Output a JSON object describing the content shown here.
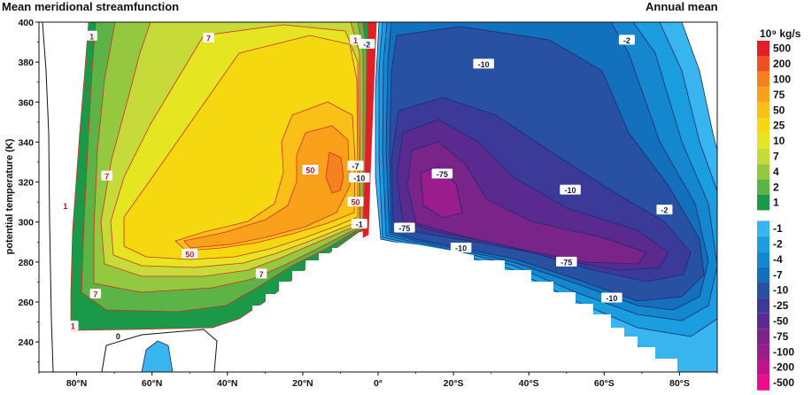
{
  "title_left": "Mean meridional streamfunction",
  "title_right": "Annual mean",
  "chart_data": {
    "type": "contour",
    "title": "Mean meridional streamfunction",
    "subtitle": "Annual mean",
    "xlabel": "",
    "ylabel": "potential temperature (K)",
    "xlim": [
      90,
      -90
    ],
    "ylim": [
      225,
      400
    ],
    "x_ticks": [
      80,
      60,
      40,
      20,
      0,
      -20,
      -40,
      -60,
      -80
    ],
    "x_tick_labels": [
      "80°N",
      "60°N",
      "40°N",
      "20°N",
      "0°",
      "20°S",
      "40°S",
      "60°S",
      "80°S"
    ],
    "y_ticks": [
      240,
      260,
      280,
      300,
      320,
      340,
      360,
      380,
      400
    ],
    "y_tick_labels": [
      "240",
      "260",
      "280",
      "300",
      "320",
      "340",
      "360",
      "380",
      "400"
    ],
    "units": "10⁹ kg/s",
    "colorbar_levels": [
      "500",
      "200",
      "100",
      "75",
      "50",
      "25",
      "10",
      "7",
      "4",
      "2",
      "1",
      "-1",
      "-2",
      "-4",
      "-7",
      "-10",
      "-25",
      "-50",
      "-75",
      "-100",
      "-200",
      "-500"
    ],
    "colorbar_colors": [
      "#e41e26",
      "#f04e23",
      "#f5821f",
      "#f9a11b",
      "#fbc017",
      "#f5d80f",
      "#e5e621",
      "#c6db3a",
      "#94c83e",
      "#5db446",
      "#1a9a48",
      "#38b4ee",
      "#1a9ee0",
      "#1587ce",
      "#1270bd",
      "#2951a3",
      "#3c3a98",
      "#5a2a91",
      "#7a2489",
      "#9a1d8b",
      "#c0148e",
      "#e90e8b"
    ],
    "contour_labels": [
      {
        "value": "1",
        "lat": 76,
        "theta": 393
      },
      {
        "value": "7",
        "lat": 45,
        "theta": 392
      },
      {
        "value": "1",
        "lat": 6,
        "theta": 391
      },
      {
        "value": "-2",
        "lat": 3,
        "theta": 389
      },
      {
        "value": "-10",
        "lat": -28,
        "theta": 379
      },
      {
        "value": "-2",
        "lat": -66,
        "theta": 391
      },
      {
        "value": "7",
        "lat": 72,
        "theta": 323
      },
      {
        "value": "50",
        "lat": 18,
        "theta": 326
      },
      {
        "value": "-7",
        "lat": 6,
        "theta": 328
      },
      {
        "value": "-10",
        "lat": 5,
        "theta": 322
      },
      {
        "value": "-75",
        "lat": -17,
        "theta": 324
      },
      {
        "value": "-10",
        "lat": -51,
        "theta": 316
      },
      {
        "value": "-2",
        "lat": -76,
        "theta": 306
      },
      {
        "value": "1",
        "lat": 83,
        "theta": 308
      },
      {
        "value": "50",
        "lat": 6,
        "theta": 310
      },
      {
        "value": "-1",
        "lat": 5,
        "theta": 299
      },
      {
        "value": "-75",
        "lat": -7,
        "theta": 297
      },
      {
        "value": "-10",
        "lat": -22,
        "theta": 287
      },
      {
        "value": "50",
        "lat": 50,
        "theta": 284
      },
      {
        "value": "7",
        "lat": 31,
        "theta": 274
      },
      {
        "value": "-75",
        "lat": -50,
        "theta": 280
      },
      {
        "value": "7",
        "lat": 75,
        "theta": 264
      },
      {
        "value": "-10",
        "lat": -62,
        "theta": 262
      },
      {
        "value": "1",
        "lat": 81,
        "theta": 248
      },
      {
        "value": "0",
        "lat": 69,
        "theta": 243
      }
    ]
  }
}
